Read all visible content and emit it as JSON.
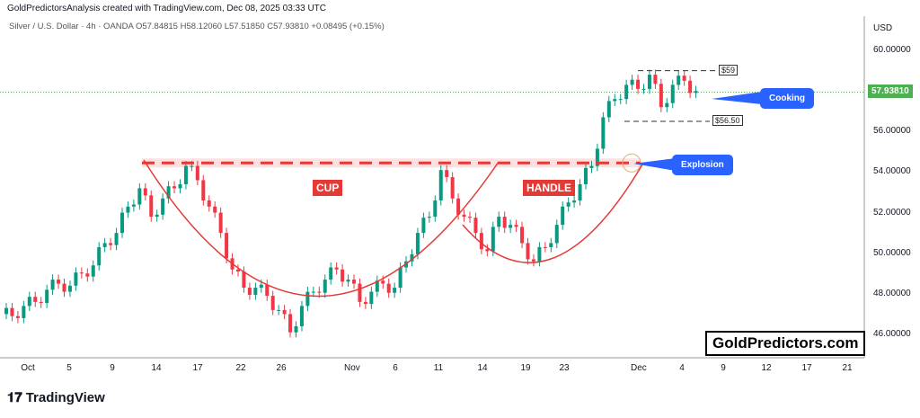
{
  "header": {
    "credit": "GoldPredictorsAnalysis created with TradingView.com, Dec 08, 2025 03:33 UTC",
    "legend": "Silver / U.S. Dollar · 4h · OANDA  O57.84815  H58.12060  L57.51850  C57.93810  +0.08495 (+0.15%)"
  },
  "chart_data": {
    "type": "candlestick",
    "symbol": "Silver / U.S. Dollar",
    "interval": "4h",
    "source": "OANDA",
    "currency": "USD",
    "ylim": [
      45,
      61
    ],
    "y_ticks": [
      "60.00000",
      "56.00000",
      "54.00000",
      "52.00000",
      "50.00000",
      "48.00000",
      "46.00000"
    ],
    "x_ticks": [
      "Oct",
      "5",
      "9",
      "14",
      "17",
      "22",
      "26",
      "Nov",
      "6",
      "11",
      "14",
      "19",
      "23",
      "Dec",
      "4",
      "9",
      "12",
      "17",
      "21"
    ],
    "closes": [
      47.0,
      46.9,
      47.4,
      47.6,
      48.2,
      48.5,
      48.4,
      49.0,
      49.4,
      50.5,
      51.0,
      52.3,
      53.2,
      51.8,
      52.7,
      53.2,
      54.3,
      53.6,
      52.3,
      51.0,
      49.2,
      48.3,
      48.3,
      47.9,
      47.2,
      46.1,
      47.4,
      48.1,
      48.7,
      49.2,
      48.7,
      47.6,
      48.1,
      48.5,
      48.3,
      49.6,
      51.0,
      51.8,
      54.1,
      52.7,
      51.8,
      51.0,
      50.1,
      51.8,
      51.4,
      50.5,
      49.6,
      50.3,
      51.4,
      52.5,
      53.4,
      54.3,
      56.7,
      57.6,
      58.3,
      58.1,
      58.8,
      57.2,
      58.3,
      58.5,
      58.0
    ],
    "last_price": "57.93810",
    "colors": {
      "up": "#089981",
      "down": "#f23645",
      "annotation": "#e53935",
      "callout": "#2962ff",
      "last": "#4caf50"
    },
    "annotations": {
      "cup": "CUP",
      "handle": "HANDLE",
      "explosion": "Explosion",
      "cooking": "Cooking",
      "upper": "$59",
      "lower": "$56.50",
      "resistance": 54.45,
      "upper_level": 59,
      "lower_level": 56.5
    }
  },
  "watermark": "GoldPredictors.com",
  "footer": {
    "logo": "TradingView"
  }
}
